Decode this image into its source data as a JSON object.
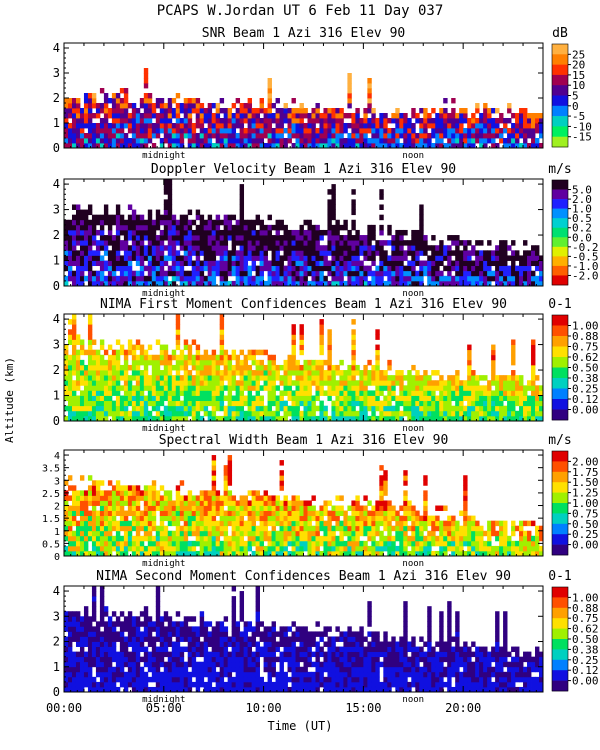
{
  "chart_data": {
    "type": "heatmap",
    "title": "PCAPS W.Jordan UT   6 Feb 11 Day 037",
    "xlabel": "Time (UT)",
    "ylabel": "Altitude (km)",
    "xlim": [
      0,
      24
    ],
    "x_ticks": [
      {
        "value": 0,
        "label": "00:00"
      },
      {
        "value": 5,
        "label": "05:00"
      },
      {
        "value": 10,
        "label": "10:00"
      },
      {
        "value": 15,
        "label": "15:00"
      },
      {
        "value": 20,
        "label": "20:00"
      }
    ],
    "day_markers": [
      {
        "value": 5,
        "label": "midnight"
      },
      {
        "value": 17.5,
        "label": "noon"
      }
    ],
    "panels": [
      {
        "title": "SNR Beam 1 Azi 316 Elev 90",
        "units": "dB",
        "ylim": [
          0,
          4.2
        ],
        "y_ticks": [
          "0",
          "1",
          "2",
          "3",
          "4"
        ],
        "colorbar": {
          "labels": [
            "25",
            "20",
            "15",
            "10",
            "5",
            "0",
            "-5",
            "-10",
            "-15"
          ],
          "colors": [
            "#FFB040",
            "#FF7F00",
            "#FF3000",
            "#A00050",
            "#500090",
            "#1010E0",
            "#0080FF",
            "#00D0C0",
            "#00F060",
            "#A0F020"
          ]
        },
        "profile": {
          "top_km": [
            1.9,
            2.0,
            1.8,
            1.7,
            1.6,
            1.4,
            1.2,
            1.6,
            1.4,
            1.3
          ],
          "base_level": 0.45,
          "noise": 0.45
        }
      },
      {
        "title": "Doppler Velocity Beam 1 Azi 316 Elev 90",
        "units": "m/s",
        "ylim": [
          0,
          4.2
        ],
        "y_ticks": [
          "0",
          "1",
          "2",
          "3",
          "4"
        ],
        "colorbar": {
          "labels": [
            "5.0",
            "2.0",
            "1.0",
            "0.5",
            "0.2",
            "0.0",
            "-0.2",
            "-0.5",
            "-1.0",
            "-2.0"
          ],
          "colors": [
            "#200020",
            "#6000A0",
            "#2020FF",
            "#0090FF",
            "#00D0D0",
            "#00E070",
            "#60F030",
            "#E0F000",
            "#FFB000",
            "#FF6000",
            "#E00000"
          ]
        },
        "profile": {
          "top_km": [
            2.9,
            2.8,
            2.7,
            2.6,
            2.4,
            2.2,
            2.0,
            1.7,
            1.5,
            1.3
          ],
          "base_level": 0.78,
          "noise": 0.35
        }
      },
      {
        "title": "NIMA First Moment Confidences Beam 1 Azi 316 Elev 90",
        "units": "0-1",
        "ylim": [
          0,
          4.2
        ],
        "y_ticks": [
          "0",
          "1",
          "2",
          "3",
          "4"
        ],
        "colorbar": {
          "labels": [
            "1.00",
            "0.88",
            "0.75",
            "0.62",
            "0.50",
            "0.38",
            "0.25",
            "0.12",
            "0.00"
          ],
          "colors": [
            "#E00000",
            "#FF5000",
            "#FFA000",
            "#FFE000",
            "#A0F000",
            "#00E060",
            "#00D0C0",
            "#0080FF",
            "#1010E0",
            "#300080"
          ]
        },
        "profile": {
          "top_km": [
            3.0,
            2.9,
            2.8,
            2.6,
            2.4,
            2.2,
            2.0,
            1.8,
            1.6,
            1.5
          ],
          "base_level": 0.45,
          "noise": 0.3
        }
      },
      {
        "title": "Spectral Width Beam 1 Azi 316 Elev 90",
        "units": "m/s",
        "ylim": [
          0,
          4.2
        ],
        "y_ticks": [
          "0",
          "0.5",
          "1",
          "1.5",
          "2",
          "2.5",
          "3",
          "3.5",
          "4"
        ],
        "colorbar": {
          "labels": [
            "2.00",
            "1.75",
            "1.50",
            "1.25",
            "1.00",
            "0.75",
            "0.50",
            "0.25",
            "0.00"
          ],
          "colors": [
            "#E00000",
            "#FF5000",
            "#FFA000",
            "#FFE000",
            "#A0F000",
            "#00E060",
            "#00D0C0",
            "#0080FF",
            "#1010E0",
            "#300080"
          ]
        },
        "profile": {
          "top_km": [
            2.8,
            2.7,
            2.6,
            2.5,
            2.3,
            2.1,
            1.9,
            1.6,
            1.3,
            1.2
          ],
          "base_level": 0.52,
          "noise": 0.4
        }
      },
      {
        "title": "NIMA Second Moment Confidences Beam 1 Azi 316 Elev 90",
        "units": "0-1",
        "ylim": [
          0,
          4.2
        ],
        "y_ticks": [
          "0",
          "1",
          "2",
          "3",
          "4"
        ],
        "colorbar": {
          "labels": [
            "1.00",
            "0.88",
            "0.75",
            "0.62",
            "0.50",
            "0.38",
            "0.25",
            "0.12",
            "0.00"
          ],
          "colors": [
            "#E00000",
            "#FF5000",
            "#FFA000",
            "#FFE000",
            "#A0F000",
            "#00E060",
            "#00D0C0",
            "#0080FF",
            "#1010E0",
            "#300080"
          ]
        },
        "profile": {
          "top_km": [
            3.1,
            3.0,
            2.9,
            2.7,
            2.5,
            2.3,
            2.1,
            1.9,
            1.6,
            1.5
          ],
          "base_level": 0.14,
          "noise": 0.12
        }
      }
    ]
  }
}
